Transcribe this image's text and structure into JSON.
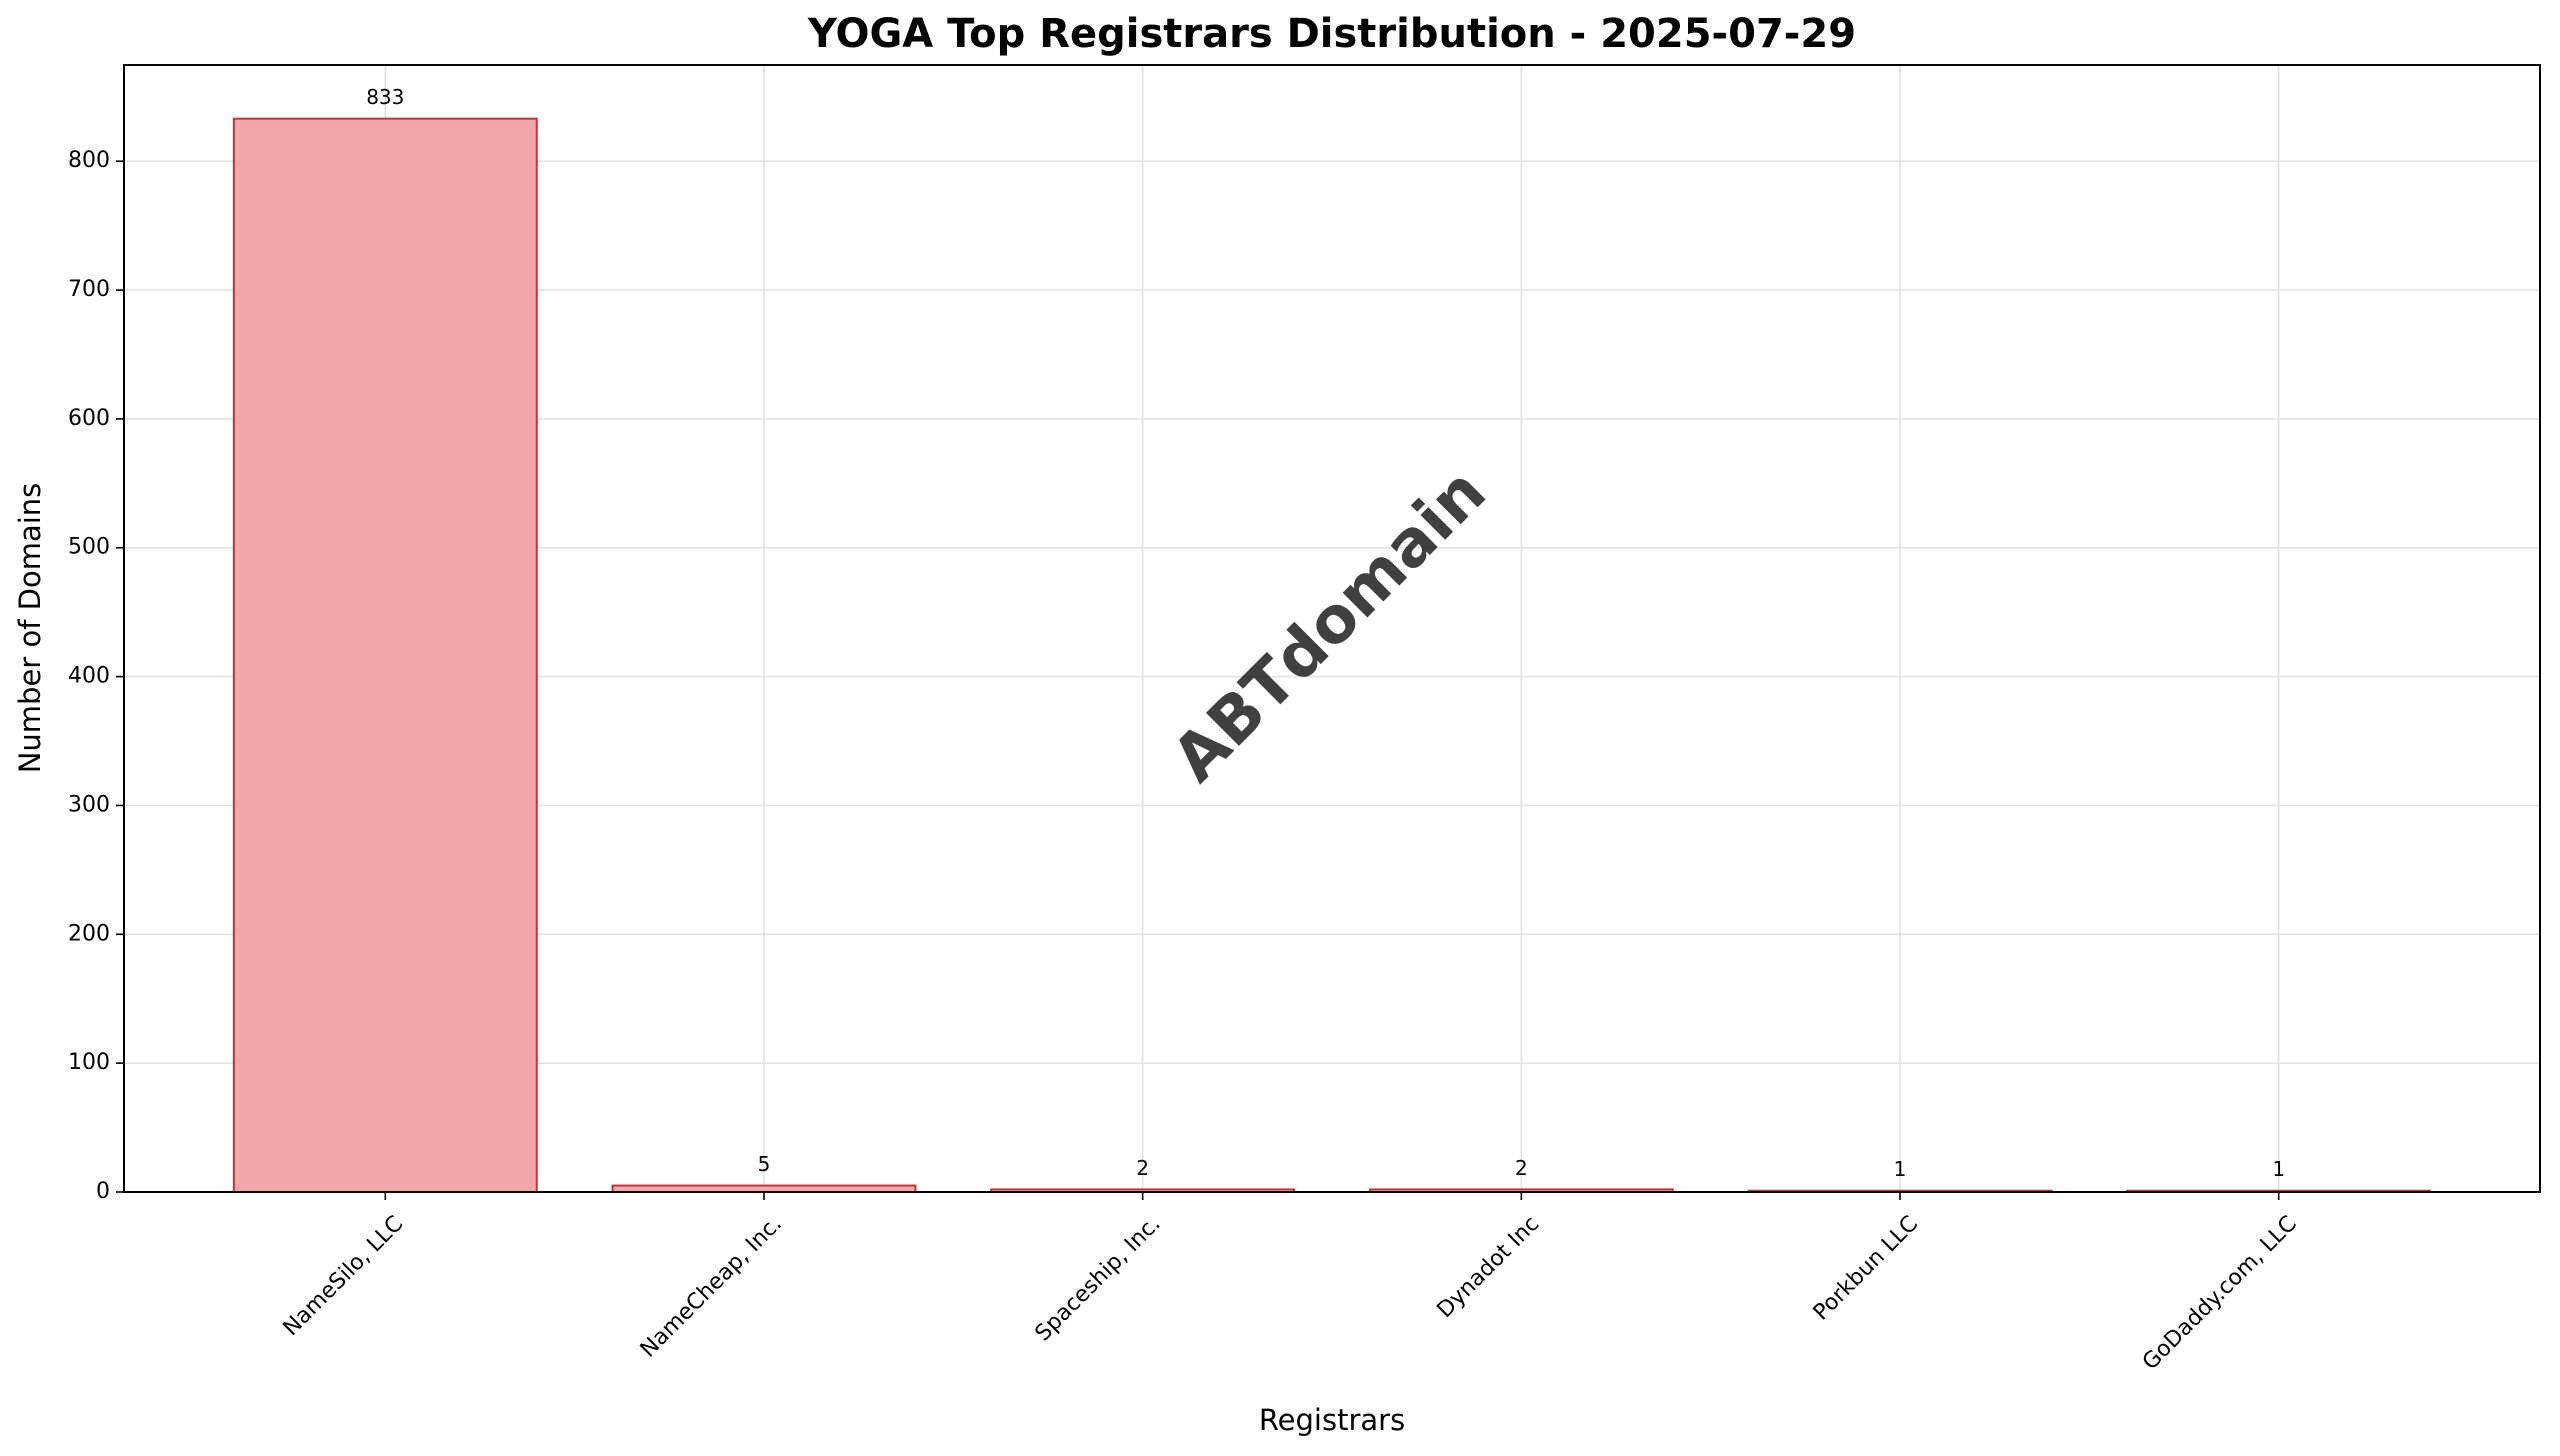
{
  "chart_data": {
    "type": "bar",
    "title": "YOGA Top Registrars Distribution - 2025-07-29",
    "x_label": "Registrars",
    "y_label": "Number of Domains",
    "watermark": "ABTdomain",
    "categories": [
      "NameSilo, LLC",
      "NameCheap, Inc.",
      "Spaceship, Inc.",
      "Dynadot Inc",
      "Porkbun LLC",
      "GoDaddy.com, LLC"
    ],
    "values": [
      833,
      5,
      2,
      2,
      1,
      1
    ],
    "color": "#f2a7a8",
    "edge_color": "#c0363a",
    "ylim": [
      0,
      874.65
    ],
    "yticks": [
      0,
      100,
      200,
      300,
      400,
      500,
      600,
      700,
      800
    ],
    "grid": true
  }
}
